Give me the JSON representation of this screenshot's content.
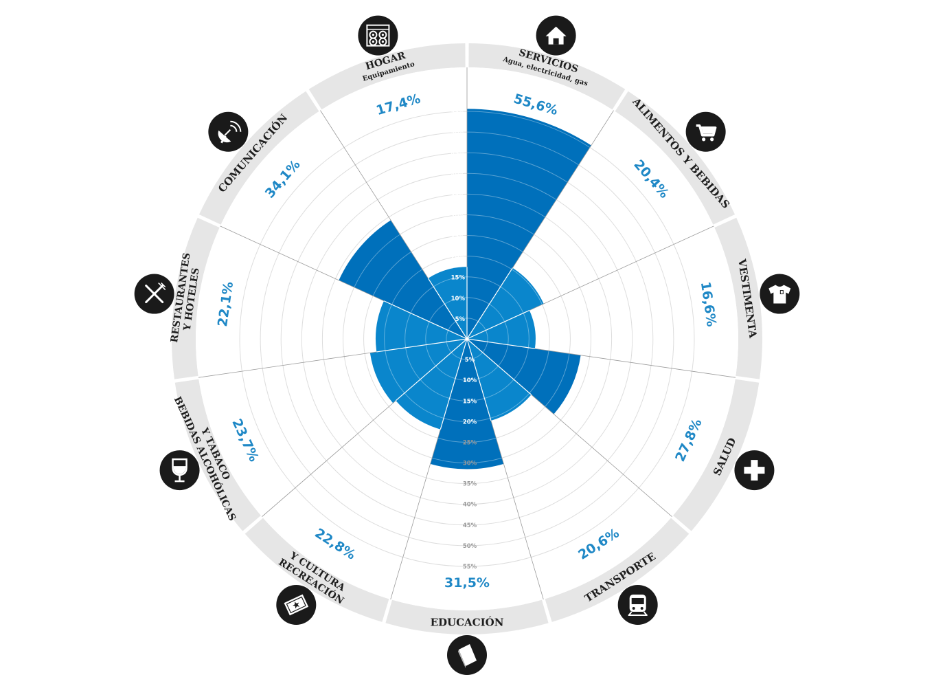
{
  "chart_data": {
    "type": "polar-area",
    "unit": "%",
    "r_ticks": [
      "5%",
      "10%",
      "15%",
      "20%",
      "25%",
      "30%",
      "35%",
      "40%",
      "45%",
      "50%",
      "55%"
    ],
    "r_tick_values": [
      5,
      10,
      15,
      20,
      25,
      30,
      35,
      40,
      45,
      50,
      55
    ],
    "rmax": 57,
    "categories": [
      {
        "key": "servicios",
        "title": "SERVICIOS",
        "subtitle": "Agua, electricidad, gas",
        "value": 55.6,
        "label": "55,6%",
        "icon": "house-icon"
      },
      {
        "key": "alimentos",
        "title": "ALIMENTOS Y BEBIDAS",
        "subtitle": "",
        "value": 20.4,
        "label": "20,4%",
        "icon": "shopping-cart-icon"
      },
      {
        "key": "vestimenta",
        "title": "VESTIMENTA",
        "subtitle": "",
        "value": 16.6,
        "label": "16,6%",
        "icon": "t-shirt-icon"
      },
      {
        "key": "salud",
        "title": "SALUD",
        "subtitle": "",
        "value": 27.8,
        "label": "27,8%",
        "icon": "medical-cross-icon"
      },
      {
        "key": "transporte",
        "title": "TRANSPORTE",
        "subtitle": "",
        "value": 20.6,
        "label": "20,6%",
        "icon": "train-icon"
      },
      {
        "key": "educacion",
        "title": "EDUCACIÓN",
        "subtitle": "",
        "value": 31.5,
        "label": "31,5%",
        "icon": "book-icon"
      },
      {
        "key": "recreacion",
        "title": "RECREACIÓN",
        "subtitle": "Y CULTURA",
        "value": 22.8,
        "label": "22,8%",
        "icon": "ticket-icon"
      },
      {
        "key": "bebidas",
        "title": "BEBIDAS ALCOHÓLICAS",
        "subtitle": "Y TABACO",
        "value": 23.7,
        "label": "23,7%",
        "icon": "wine-glass-icon"
      },
      {
        "key": "restaurantes",
        "title": "RESTAURANTES",
        "subtitle": "Y HOTELES",
        "value": 22.1,
        "label": "22,1%",
        "icon": "fork-knife-icon"
      },
      {
        "key": "comunicacion",
        "title": "COMUNICACIÓN",
        "subtitle": "",
        "value": 34.1,
        "label": "34,1%",
        "icon": "satellite-dish-icon"
      },
      {
        "key": "hogar",
        "title": "HOGAR",
        "subtitle": "Equipamiento",
        "value": 17.4,
        "label": "17,4%",
        "icon": "stove-icon"
      }
    ],
    "colors": {
      "large_wedge": "#0070bb",
      "small_wedge": "#0a86cc",
      "label": "#1f88c6",
      "ring": "#e6e6e6",
      "grid": "#dddddd",
      "icon_bg": "#1a1a1a"
    },
    "legend": "none",
    "grid": true
  }
}
